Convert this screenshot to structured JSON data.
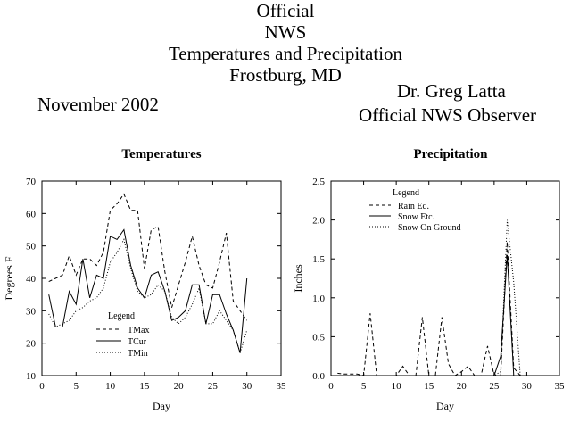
{
  "header": {
    "title_lines": [
      "Official",
      "NWS",
      "Temperatures and Precipitation",
      "Frostburg, MD"
    ],
    "month": "November 2002",
    "observer_name": "Dr. Greg Latta",
    "observer_role": "Official NWS Observer"
  },
  "chart_data": [
    {
      "type": "line",
      "title": "Temperatures",
      "xlabel": "Day",
      "ylabel": "Degrees F",
      "xlim": [
        0,
        35
      ],
      "ylim": [
        10,
        70
      ],
      "xticks": [
        0,
        5,
        10,
        15,
        20,
        25,
        30,
        35
      ],
      "yticks": [
        10,
        20,
        30,
        40,
        50,
        60,
        70
      ],
      "legend_title": "Legend",
      "legend_position": "bottom-left",
      "x": [
        1,
        2,
        3,
        4,
        5,
        6,
        7,
        8,
        9,
        10,
        11,
        12,
        13,
        14,
        15,
        16,
        17,
        18,
        19,
        20,
        21,
        22,
        23,
        24,
        25,
        26,
        27,
        28,
        29,
        30
      ],
      "series": [
        {
          "name": "TMax",
          "style": "dashed",
          "values": [
            39,
            40,
            41,
            47,
            41,
            46,
            46,
            44,
            48,
            61,
            63,
            66,
            61,
            61,
            43,
            55,
            56,
            42,
            31,
            38,
            45,
            53,
            44,
            38,
            37,
            45,
            54,
            33,
            30,
            27
          ]
        },
        {
          "name": "TCur",
          "style": "solid",
          "values": [
            35,
            25,
            25,
            36,
            32,
            46,
            34,
            41,
            40,
            53,
            52,
            55,
            44,
            37,
            34,
            41,
            42,
            36,
            27,
            28,
            30,
            38,
            38,
            26,
            35,
            35,
            29,
            24,
            17,
            40
          ]
        },
        {
          "name": "TMin",
          "style": "dotted",
          "values": [
            29,
            25,
            26,
            27,
            30,
            31,
            33,
            34,
            37,
            45,
            48,
            52,
            43,
            36,
            34,
            35,
            38,
            36,
            28,
            26,
            28,
            32,
            37,
            26,
            26,
            30,
            27,
            24,
            17,
            24
          ]
        }
      ]
    },
    {
      "type": "line",
      "title": "Precipitation",
      "xlabel": "Day",
      "ylabel": "Inches",
      "xlim": [
        0,
        35
      ],
      "ylim": [
        0,
        2.5
      ],
      "xticks": [
        0,
        5,
        10,
        15,
        20,
        25,
        30,
        35
      ],
      "yticks": [
        0,
        0.5,
        1.0,
        1.5,
        2.0,
        2.5
      ],
      "ytick_labels": [
        "0.0",
        "0.5",
        "1.0",
        "1.5",
        "2.0",
        "2.5"
      ],
      "legend_title": "Legend",
      "legend_position": "top-left",
      "x": [
        1,
        2,
        3,
        4,
        5,
        6,
        7,
        8,
        9,
        10,
        11,
        12,
        13,
        14,
        15,
        16,
        17,
        18,
        19,
        20,
        21,
        22,
        23,
        24,
        25,
        26,
        27,
        28,
        29,
        30
      ],
      "series": [
        {
          "name": "Rain Eq.",
          "style": "dashed",
          "values": [
            0.03,
            0.02,
            0.02,
            0.02,
            0.0,
            0.8,
            0.0,
            0.0,
            0.0,
            0.0,
            0.12,
            0.0,
            0.0,
            0.75,
            0.0,
            0.0,
            0.75,
            0.15,
            0.0,
            0.05,
            0.12,
            0.0,
            0.0,
            0.38,
            0.0,
            0.0,
            1.72,
            0.1,
            0.0,
            0.0
          ]
        },
        {
          "name": "Snow Etc.",
          "style": "solid",
          "values": [
            0,
            0,
            0,
            0,
            0,
            0,
            0,
            0,
            0,
            0,
            0,
            0,
            0,
            0,
            0,
            0,
            0,
            0,
            0,
            0,
            0,
            0,
            0,
            0.0,
            0,
            0.25,
            1.55,
            0,
            0,
            0
          ]
        },
        {
          "name": "Snow On Ground",
          "style": "dotted",
          "values": [
            0,
            0,
            0,
            0,
            0,
            0,
            0,
            0,
            0,
            0,
            0,
            0,
            0,
            0,
            0,
            0,
            0,
            0,
            0,
            0,
            0,
            0,
            0,
            0,
            0,
            0.05,
            2.0,
            1.2,
            0.0,
            0.0
          ]
        }
      ]
    }
  ]
}
